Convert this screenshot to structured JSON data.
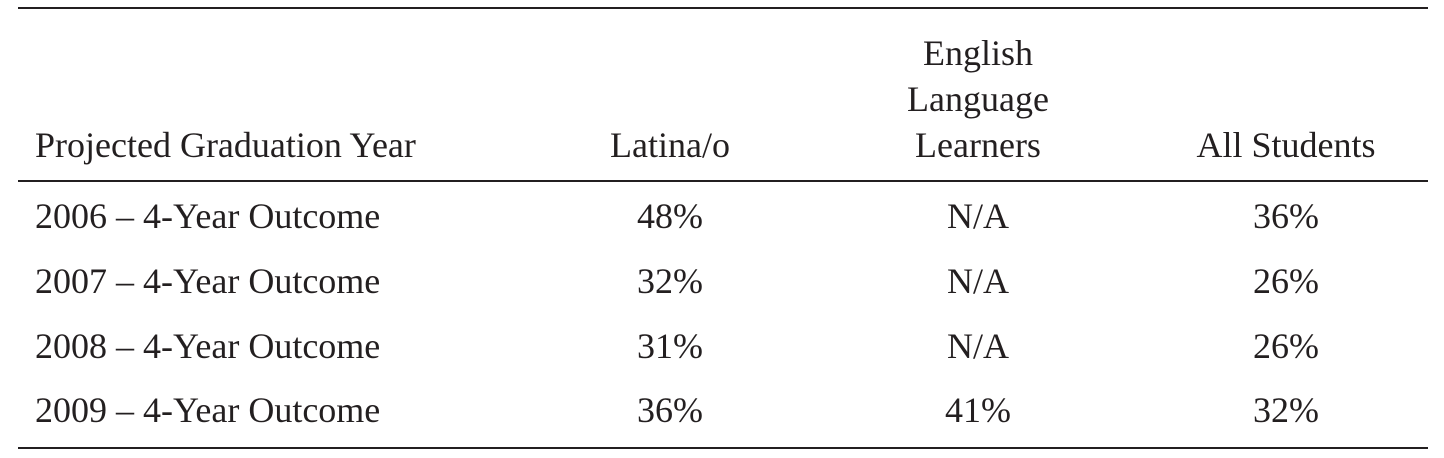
{
  "table": {
    "header": [
      "Projected Graduation Year",
      "Latina/o",
      "English Language Learners",
      "All Students"
    ],
    "rows": [
      [
        "2006 – 4-Year Outcome",
        "48%",
        "N/A",
        "36%"
      ],
      [
        "2007 – 4-Year Outcome",
        "32%",
        "N/A",
        "26%"
      ],
      [
        "2008 – 4-Year Outcome",
        "31%",
        "N/A",
        "26%"
      ],
      [
        "2009 – 4-Year Outcome",
        "36%",
        "41%",
        "32%"
      ]
    ]
  }
}
